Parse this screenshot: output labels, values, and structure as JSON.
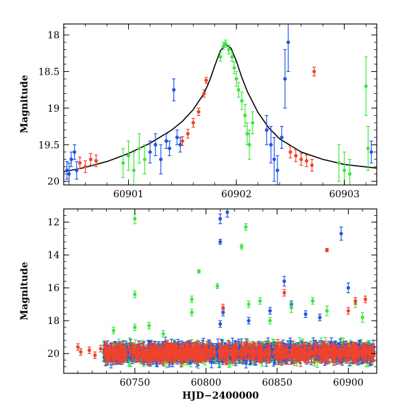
{
  "chart_data": [
    {
      "type": "scatter",
      "panel": "top",
      "xlabel": "",
      "ylabel": "Magnitude",
      "xlim": [
        60900.4,
        60903.3
      ],
      "ylim": [
        20.05,
        17.85
      ],
      "y_inverted": true,
      "xticks": [
        60901,
        60902,
        60903
      ],
      "xtick_labels": [
        "60901",
        "60902",
        "60903"
      ],
      "yticks": [
        18,
        18.5,
        19,
        19.5,
        20
      ],
      "ytick_labels": [
        "18",
        "18.5",
        "19",
        "19.5",
        "20"
      ],
      "model_curve": {
        "type": "line",
        "color": "#000000",
        "x": [
          60900.4,
          60900.6,
          60900.8,
          60901.0,
          60901.2,
          60901.4,
          60901.5,
          60901.6,
          60901.7,
          60901.75,
          60901.8,
          60901.85,
          60901.9,
          60901.95,
          60902.0,
          60902.05,
          60902.1,
          60902.2,
          60902.3,
          60902.4,
          60902.6,
          60902.8,
          60903.0,
          60903.3
        ],
        "y": [
          19.87,
          19.81,
          19.73,
          19.62,
          19.48,
          19.3,
          19.18,
          19.02,
          18.8,
          18.63,
          18.42,
          18.22,
          18.13,
          18.18,
          18.36,
          18.58,
          18.77,
          19.06,
          19.27,
          19.42,
          19.6,
          19.7,
          19.77,
          19.82
        ]
      },
      "series": [
        {
          "color": "#1f55e6",
          "x": [
            60900.43,
            60900.45,
            60900.47,
            60900.5,
            60900.52,
            60901.2,
            60901.25,
            60901.3,
            60901.35,
            60901.38,
            60901.42,
            60901.45,
            60901.48,
            60902.28,
            60902.32,
            60902.35,
            60902.38,
            60902.42,
            60902.45,
            60902.48,
            60903.25
          ],
          "y": [
            19.85,
            19.9,
            19.7,
            19.6,
            19.85,
            19.6,
            19.5,
            19.7,
            19.45,
            19.55,
            18.75,
            19.4,
            19.5,
            19.3,
            19.5,
            19.7,
            19.85,
            19.4,
            18.6,
            18.1,
            19.6
          ],
          "err": [
            0.12,
            0.15,
            0.1,
            0.1,
            0.12,
            0.15,
            0.15,
            0.2,
            0.1,
            0.1,
            0.15,
            0.1,
            0.1,
            0.2,
            0.25,
            0.3,
            0.2,
            0.15,
            0.4,
            0.4,
            0.15
          ]
        },
        {
          "color": "#f0432c",
          "x": [
            60900.55,
            60900.6,
            60900.65,
            60900.7,
            60901.5,
            60901.55,
            60901.6,
            60901.65,
            60901.7,
            60901.72,
            60902.5,
            60902.55,
            60902.6,
            60902.65,
            60902.7,
            60902.72
          ],
          "y": [
            19.75,
            19.8,
            19.7,
            19.72,
            19.45,
            19.35,
            19.2,
            19.05,
            18.8,
            18.62,
            19.6,
            19.65,
            19.7,
            19.72,
            19.78,
            18.5
          ],
          "err": [
            0.08,
            0.08,
            0.08,
            0.08,
            0.06,
            0.06,
            0.06,
            0.05,
            0.05,
            0.04,
            0.08,
            0.08,
            0.08,
            0.08,
            0.08,
            0.06
          ]
        },
        {
          "color": "#3ee53e",
          "x": [
            60900.95,
            60901.0,
            60901.05,
            60901.1,
            60901.15,
            60901.85,
            60901.88,
            60901.9,
            60901.93,
            60901.96,
            60901.98,
            60902.0,
            60902.02,
            60902.05,
            60902.08,
            60902.1,
            60902.12,
            60902.15,
            60902.95,
            60903.0,
            60903.05,
            60903.2,
            60903.22
          ],
          "y": [
            19.75,
            19.65,
            19.85,
            19.55,
            19.7,
            18.3,
            18.15,
            18.12,
            18.2,
            18.3,
            18.45,
            18.6,
            18.75,
            18.9,
            19.1,
            19.35,
            19.5,
            19.2,
            19.75,
            19.85,
            19.9,
            18.7,
            19.55
          ],
          "err": [
            0.2,
            0.2,
            0.25,
            0.2,
            0.2,
            0.06,
            0.05,
            0.05,
            0.06,
            0.06,
            0.08,
            0.1,
            0.1,
            0.12,
            0.15,
            0.15,
            0.2,
            0.15,
            0.25,
            0.25,
            0.2,
            0.4,
            0.3
          ]
        }
      ]
    },
    {
      "type": "scatter",
      "panel": "bottom",
      "xlabel": "HJD−2400000",
      "ylabel": "Magnitude",
      "xlim": [
        60700,
        60920
      ],
      "ylim": [
        21.2,
        11.2
      ],
      "y_inverted": true,
      "xticks": [
        60750,
        60800,
        60850,
        60900
      ],
      "xtick_labels": [
        "60750",
        "60800",
        "60850",
        "60900"
      ],
      "yticks": [
        12,
        14,
        16,
        18,
        20
      ],
      "ytick_labels": [
        "12",
        "14",
        "16",
        "18",
        "20"
      ],
      "baseline": {
        "x_start": 60728,
        "x_end": 60918,
        "mag": 19.95,
        "spread": 0.7
      },
      "series": [
        {
          "color": "#1f55e6",
          "x": [
            60810,
            60810,
            60815,
            60810,
            60845,
            60855,
            60860,
            60895,
            60900,
            60812,
            60830,
            60870,
            60880
          ],
          "y": [
            11.8,
            13.2,
            11.4,
            18.2,
            17.4,
            15.6,
            17.0,
            12.7,
            16.0,
            17.5,
            18.0,
            17.6,
            17.8
          ],
          "err": [
            0.3,
            0.15,
            0.3,
            0.2,
            0.2,
            0.3,
            0.2,
            0.4,
            0.3,
            0.2,
            0.2,
            0.2,
            0.2
          ]
        },
        {
          "color": "#3ee53e",
          "x": [
            60750,
            60750,
            60750,
            60795,
            60790,
            60825,
            60828,
            60808,
            60790,
            60830,
            60838,
            60845,
            60860,
            60875,
            60885,
            60905,
            60910,
            60735,
            60760,
            60770
          ],
          "y": [
            11.8,
            16.4,
            18.4,
            15.0,
            16.7,
            13.5,
            12.3,
            15.9,
            17.5,
            17.0,
            16.8,
            18.0,
            17.2,
            16.8,
            17.4,
            16.9,
            17.8,
            18.6,
            18.3,
            18.8
          ],
          "err": [
            0.3,
            0.2,
            0.2,
            0.1,
            0.2,
            0.15,
            0.2,
            0.15,
            0.2,
            0.2,
            0.2,
            0.2,
            0.3,
            0.2,
            0.3,
            0.3,
            0.3,
            0.2,
            0.2,
            0.2
          ]
        },
        {
          "color": "#f0432c",
          "x": [
            60710,
            60712,
            60718,
            60722,
            60726,
            60812,
            60855,
            60885,
            60900,
            60905,
            60912
          ],
          "y": [
            19.6,
            19.9,
            19.8,
            20.1,
            19.7,
            17.2,
            16.3,
            13.7,
            17.4,
            16.8,
            16.7
          ],
          "err": [
            0.2,
            0.2,
            0.2,
            0.2,
            0.2,
            0.2,
            0.2,
            0.1,
            0.2,
            0.2,
            0.2
          ]
        }
      ]
    }
  ]
}
